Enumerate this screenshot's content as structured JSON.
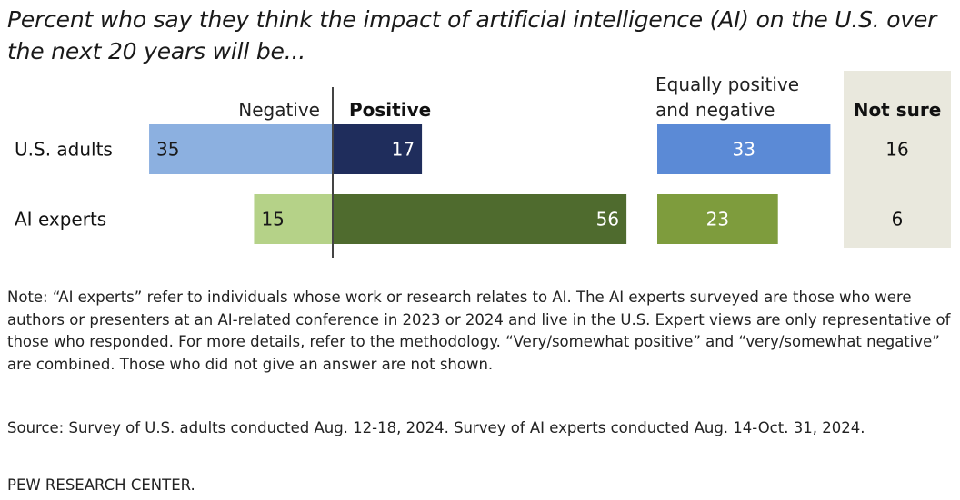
{
  "title": "Percent who say they think the impact of artificial intelligence (AI) on the U.S. over the next 20 years will be...",
  "chart_data": {
    "type": "bar",
    "title": "Percent who say they think the impact of artificial intelligence (AI) on the U.S. over the next 20 years will be...",
    "categories": [
      "U.S. adults",
      "AI experts"
    ],
    "series": [
      {
        "name": "Negative",
        "values": [
          35,
          15
        ]
      },
      {
        "name": "Positive",
        "values": [
          17,
          56
        ]
      },
      {
        "name": "Equally positive and negative",
        "values": [
          33,
          23
        ]
      },
      {
        "name": "Not sure",
        "values": [
          16,
          6
        ]
      }
    ],
    "column_headers": {
      "negative": "Negative",
      "positive": "Positive",
      "equally_line1": "Equally positive",
      "equally_line2": "and negative",
      "not_sure": "Not sure"
    },
    "colors": {
      "us_negative": "#8cb0e0",
      "us_positive": "#1f2d5c",
      "us_equally": "#5b8ad6",
      "ai_negative": "#b5d288",
      "ai_positive": "#4f6b2e",
      "ai_equally": "#7e9c3d",
      "not_sure_bg": "#e9e8dd",
      "axis": "#444444"
    }
  },
  "notes": {
    "main": "Note: “AI experts” refer to individuals whose work or research relates to AI. The AI experts surveyed are those who were authors or presenters at an AI-related conference in 2023 or 2024 and live in the U.S. Expert views are only representative of those who responded. For more details, refer to the methodology. “Very/somewhat positive” and “very/somewhat negative” are combined. Those who did not give an answer are not shown.",
    "source": "Source: Survey of U.S. adults conducted Aug. 12-18, 2024. Survey of AI experts conducted Aug. 14-Oct. 31, 2024.",
    "org": "PEW RESEARCH CENTER."
  }
}
